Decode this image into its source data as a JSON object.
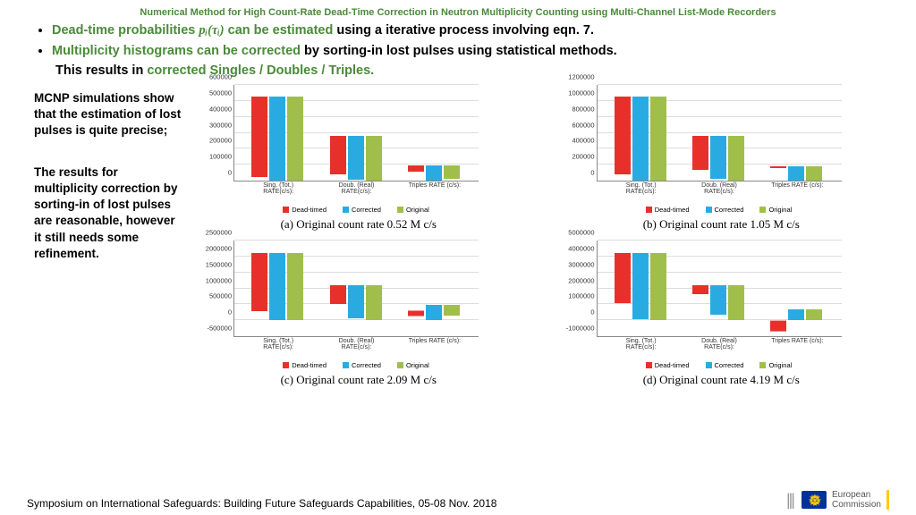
{
  "header": {
    "title": "Numerical Method for High Count-Rate Dead-Time Correction in Neutron Multiplicity Counting using Multi-Channel List-Mode Recorders"
  },
  "bullets": {
    "b1_a": "Dead-time probabilities ",
    "b1_formula": "pᵢ(τᵢ)",
    "b1_b": " can be estimated",
    "b1_c": " using a iterative process involving eqn. 7.",
    "b2_a": "Multiplicity histograms can be corrected",
    "b2_b": " by sorting-in lost pulses using statistical methods.",
    "sub_a": "This results in ",
    "sub_b": "corrected Singles / Doubles / Triples."
  },
  "left": {
    "p1": "MCNP simulations show that the estimation of lost pulses is quite precise;",
    "p2": "The results for multiplicity correction by sorting-in of lost pulses are reasonable, however it still needs some refinement."
  },
  "colors": {
    "dead": "#e8302a",
    "corr": "#29abe2",
    "orig": "#a0bf4a",
    "grid": "#dddddd",
    "axis": "#888888"
  },
  "legend_labels": {
    "dead": "Dead-timed",
    "corr": "Corrected",
    "orig": "Original"
  },
  "xcats": [
    "Sing. (Tot.) RATE(c/s):",
    "Doub. (Real) RATE(c/s):",
    "Triples RATE (c/s):"
  ],
  "charts": [
    {
      "caption": "(a) Original count rate 0.52 M c/s",
      "ymin": 0,
      "ymax": 600000,
      "ystep": 100000,
      "data": {
        "dead": [
          500000,
          240000,
          40000
        ],
        "corr": [
          520000,
          275000,
          95000
        ],
        "orig": [
          520000,
          280000,
          85000
        ]
      }
    },
    {
      "caption": "(b) Original count rate 1.05 M c/s",
      "ymin": 0,
      "ymax": 1200000,
      "ystep": 200000,
      "data": {
        "dead": [
          970000,
          420000,
          20000
        ],
        "corr": [
          1040000,
          530000,
          175000
        ],
        "orig": [
          1045000,
          555000,
          170000
        ]
      }
    },
    {
      "caption": "(c) Original count rate 2.09 M c/s",
      "ymin": -500000,
      "ymax": 2500000,
      "ystep": 500000,
      "data": {
        "dead": [
          1810000,
          600000,
          -180000
        ],
        "corr": [
          2080000,
          1030000,
          480000
        ],
        "orig": [
          2090000,
          1100000,
          340000
        ]
      }
    },
    {
      "caption": "(d) Original count rate 4.19 M c/s",
      "ymin": -1000000,
      "ymax": 5000000,
      "ystep": 1000000,
      "data": {
        "dead": [
          3150000,
          600000,
          -700000
        ],
        "corr": [
          4140000,
          1850000,
          700000
        ],
        "orig": [
          4190000,
          2200000,
          680000
        ]
      }
    }
  ],
  "footer": {
    "text": "Symposium on International Safeguards: Building Future Safeguards Capabilities,  05-08 Nov. 2018",
    "ec1": "European",
    "ec2": "Commission"
  }
}
